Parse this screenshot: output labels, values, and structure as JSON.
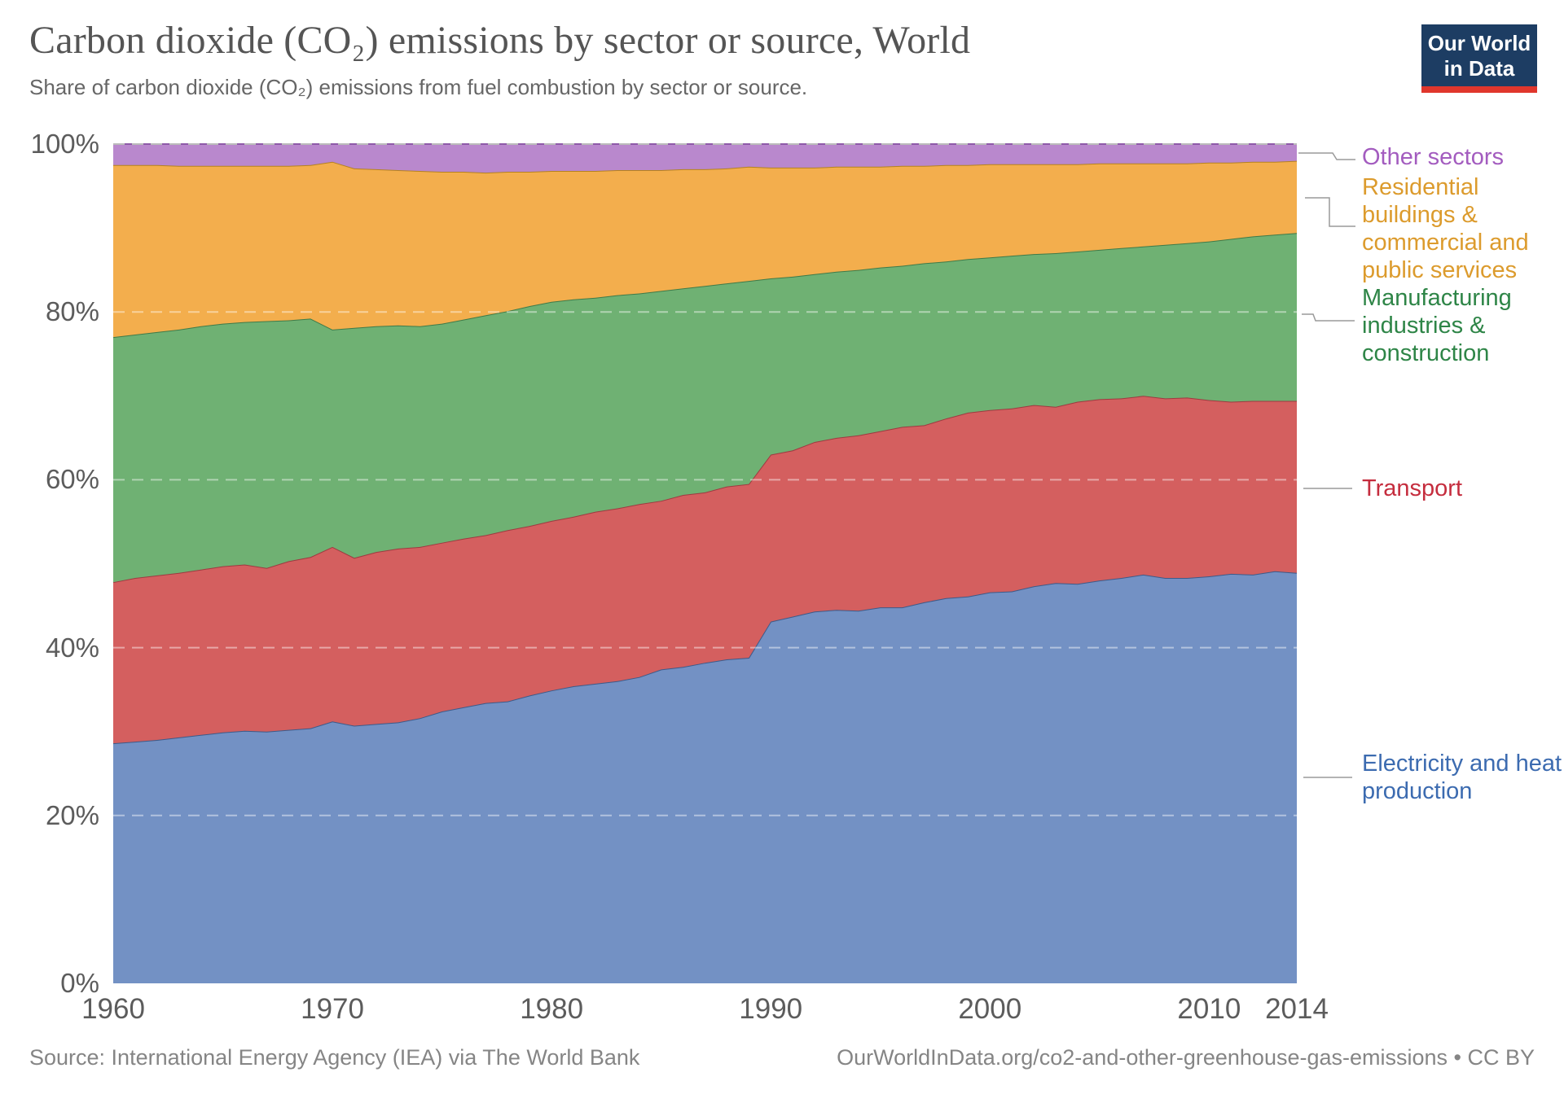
{
  "header": {
    "title": "Carbon dioxide (CO₂) emissions by sector or source, World",
    "subtitle": "Share of carbon dioxide (CO₂) emissions from fuel combustion by sector or source.",
    "logo": {
      "line1": "Our World",
      "line2": "in Data",
      "bg_color": "#1d3d63",
      "stripe_color": "#e0362c"
    }
  },
  "footer": {
    "source": "Source: International Energy Agency (IEA) via The World Bank",
    "link": "OurWorldInData.org/co2-and-other-greenhouse-gas-emissions • CC BY"
  },
  "chart_data": {
    "type": "area",
    "stacked": true,
    "unit": "%",
    "title": "Carbon dioxide (CO₂) emissions by sector or source, World",
    "xlabel": "",
    "ylabel": "",
    "xlim": [
      1960,
      2014
    ],
    "ylim": [
      0,
      100
    ],
    "grid": "horizontal-dashed",
    "legend_position": "right",
    "x": [
      1960,
      1961,
      1962,
      1963,
      1964,
      1965,
      1966,
      1967,
      1968,
      1969,
      1970,
      1971,
      1972,
      1973,
      1974,
      1975,
      1976,
      1977,
      1978,
      1979,
      1980,
      1981,
      1982,
      1983,
      1984,
      1985,
      1986,
      1987,
      1988,
      1989,
      1990,
      1991,
      1992,
      1993,
      1994,
      1995,
      1996,
      1997,
      1998,
      1999,
      2000,
      2001,
      2002,
      2003,
      2004,
      2005,
      2006,
      2007,
      2008,
      2009,
      2010,
      2011,
      2012,
      2013,
      2014
    ],
    "x_tick_labels": [
      "1960",
      "1970",
      "1980",
      "1990",
      "2000",
      "2010",
      "2014"
    ],
    "x_tick_years": [
      1960,
      1970,
      1980,
      1990,
      2000,
      2010,
      2014
    ],
    "y_tick_labels": [
      "0%",
      "20%",
      "40%",
      "60%",
      "80%",
      "100%"
    ],
    "y_tick_values": [
      0,
      20,
      40,
      60,
      80,
      100
    ],
    "series": [
      {
        "name": "Electricity and heat production",
        "fill": "#7391c4",
        "stroke": "#3d5a89",
        "label_color": "#3c6bb0",
        "values": [
          28.6,
          28.8,
          29.0,
          29.3,
          29.6,
          29.9,
          30.1,
          30.0,
          30.2,
          30.4,
          31.2,
          30.7,
          30.9,
          31.1,
          31.6,
          32.4,
          32.9,
          33.4,
          33.6,
          34.3,
          34.9,
          35.4,
          35.7,
          36.0,
          36.5,
          37.4,
          37.7,
          38.2,
          38.6,
          38.8,
          43.1,
          43.7,
          44.3,
          44.5,
          44.4,
          44.8,
          44.8,
          45.4,
          45.9,
          46.1,
          46.6,
          46.7,
          47.3,
          47.7,
          47.6,
          48.0,
          48.3,
          48.7,
          48.3,
          48.3,
          48.5,
          48.8,
          48.7,
          49.1,
          48.9
        ]
      },
      {
        "name": "Transport",
        "fill": "#d45f5f",
        "stroke": "#9e3a40",
        "label_color": "#c52d3e",
        "values": [
          19.2,
          19.5,
          19.6,
          19.6,
          19.7,
          19.8,
          19.8,
          19.5,
          20.1,
          20.4,
          20.8,
          20.0,
          20.5,
          20.7,
          20.4,
          20.1,
          20.1,
          20.0,
          20.4,
          20.2,
          20.2,
          20.2,
          20.5,
          20.6,
          20.6,
          20.1,
          20.5,
          20.3,
          20.6,
          20.7,
          19.9,
          19.8,
          20.2,
          20.5,
          20.9,
          21.0,
          21.5,
          21.1,
          21.4,
          21.9,
          21.7,
          21.8,
          21.6,
          21.0,
          21.7,
          21.6,
          21.4,
          21.3,
          21.4,
          21.5,
          21.0,
          20.5,
          20.7,
          20.3,
          20.5
        ]
      },
      {
        "name": "Manufacturing industries & construction",
        "fill": "#6fb173",
        "stroke": "#3f7a48",
        "label_color": "#2e8547",
        "values": [
          29.2,
          29.0,
          29.0,
          29.0,
          29.0,
          28.9,
          28.9,
          29.4,
          28.7,
          28.4,
          25.9,
          27.4,
          26.9,
          26.6,
          26.3,
          26.1,
          26.1,
          26.2,
          26.1,
          26.2,
          26.1,
          25.9,
          25.5,
          25.4,
          25.1,
          25.0,
          24.6,
          24.6,
          24.2,
          24.2,
          21.0,
          20.7,
          20.0,
          19.8,
          19.7,
          19.5,
          19.2,
          19.3,
          18.7,
          18.3,
          18.2,
          18.2,
          18.0,
          18.3,
          17.9,
          17.8,
          17.9,
          17.8,
          18.3,
          18.4,
          18.9,
          19.4,
          19.6,
          19.8,
          20.0
        ]
      },
      {
        "name": "Residential buildings & commercial and public services",
        "fill": "#f3ae4d",
        "stroke": "#b5821f",
        "label_color": "#dc9b2d",
        "values": [
          20.5,
          20.2,
          19.9,
          19.5,
          19.1,
          18.8,
          18.6,
          18.5,
          18.4,
          18.3,
          20.0,
          19.0,
          18.7,
          18.5,
          18.5,
          18.1,
          17.6,
          17.0,
          16.6,
          16.0,
          15.6,
          15.3,
          15.1,
          14.9,
          14.7,
          14.4,
          14.2,
          13.9,
          13.7,
          13.6,
          13.2,
          13.0,
          12.7,
          12.5,
          12.3,
          12.0,
          11.9,
          11.6,
          11.5,
          11.2,
          11.1,
          10.9,
          10.7,
          10.6,
          10.4,
          10.3,
          10.1,
          9.9,
          9.7,
          9.5,
          9.4,
          9.1,
          8.9,
          8.7,
          8.6
        ]
      },
      {
        "name": "Other sectors",
        "fill": "#b988cd",
        "stroke": "#8e5aa8",
        "label_color": "#a35cbf",
        "values": [
          2.5,
          2.5,
          2.5,
          2.6,
          2.6,
          2.6,
          2.6,
          2.6,
          2.6,
          2.5,
          2.1,
          2.9,
          3.0,
          3.1,
          3.2,
          3.3,
          3.3,
          3.4,
          3.3,
          3.3,
          3.2,
          3.2,
          3.2,
          3.1,
          3.1,
          3.1,
          3.0,
          3.0,
          2.9,
          2.7,
          2.8,
          2.8,
          2.8,
          2.7,
          2.7,
          2.7,
          2.6,
          2.6,
          2.5,
          2.5,
          2.4,
          2.4,
          2.4,
          2.4,
          2.4,
          2.3,
          2.3,
          2.3,
          2.3,
          2.3,
          2.2,
          2.2,
          2.1,
          2.1,
          2.0
        ]
      }
    ]
  }
}
